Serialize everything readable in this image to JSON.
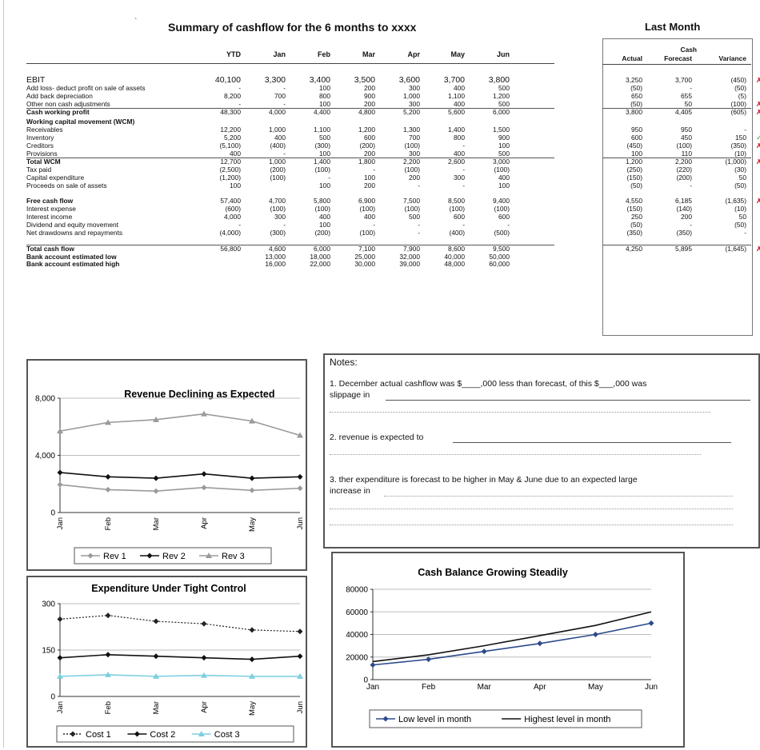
{
  "title": "Summary of cashflow for the 6 months to xxxx",
  "main_table": {
    "headers": [
      "YTD",
      "Jan",
      "Feb",
      "Mar",
      "Apr",
      "May",
      "Jun"
    ],
    "rows": [
      {
        "label": "EBIT",
        "style": "bold-big",
        "values": [
          "40,100",
          "3,300",
          "3,400",
          "3,500",
          "3,600",
          "3,700",
          "3,800"
        ]
      },
      {
        "label": "Add loss-  deduct profit on sale of assets",
        "values": [
          "-",
          "-",
          "100",
          "200",
          "300",
          "400",
          "500"
        ]
      },
      {
        "label": "Add back depreciation",
        "values": [
          "8,200",
          "700",
          "800",
          "900",
          "1,000",
          "1,100",
          "1,200"
        ]
      },
      {
        "label": "Other non cash adjustments",
        "values": [
          "-",
          "-",
          "100",
          "200",
          "300",
          "400",
          "500"
        ]
      },
      {
        "label": "Cash working profit",
        "style": "bold",
        "values": [
          "48,300",
          "4,000",
          "4,400",
          "4,800",
          "5,200",
          "5,600",
          "6,000"
        ]
      },
      {
        "label": "Working capital movement (WCM)",
        "style": "bold",
        "values": [
          "",
          "",
          "",
          "",
          "",
          "",
          ""
        ]
      },
      {
        "label": "Receivables",
        "values": [
          "12,200",
          "1,000",
          "1,100",
          "1,200",
          "1,300",
          "1,400",
          "1,500"
        ]
      },
      {
        "label": "Inventory",
        "values": [
          "5,200",
          "400",
          "500",
          "600",
          "700",
          "800",
          "900"
        ]
      },
      {
        "label": "Creditors",
        "values": [
          "(5,100)",
          "(400)",
          "(300)",
          "(200)",
          "(100)",
          "-",
          "100"
        ]
      },
      {
        "label": "Provisions",
        "values": [
          "400",
          "-",
          "100",
          "200",
          "300",
          "400",
          "500"
        ]
      },
      {
        "label": "Total WCM",
        "style": "bold",
        "values": [
          "12,700",
          "1,000",
          "1,400",
          "1,800",
          "2,200",
          "2,600",
          "3,000"
        ]
      },
      {
        "label": "Tax paid",
        "values": [
          "(2,500)",
          "(200)",
          "(100)",
          "-",
          "(100)",
          "-",
          "(100)"
        ]
      },
      {
        "label": "Capital expenditure",
        "values": [
          "(1,200)",
          "(100)",
          "-",
          "100",
          "200",
          "300",
          "400"
        ]
      },
      {
        "label": "Proceeds on sale of assets",
        "values": [
          "100",
          "",
          "100",
          "200",
          "-",
          "-",
          "100"
        ]
      },
      {
        "label": "",
        "values": [
          "",
          "",
          "",
          "",
          "",
          "",
          ""
        ]
      },
      {
        "label": "Free cash flow",
        "style": "bold",
        "values": [
          "57,400",
          "4,700",
          "5,800",
          "6,900",
          "7,500",
          "8,500",
          "9,400"
        ]
      },
      {
        "label": "Interest expense",
        "values": [
          "(600)",
          "(100)",
          "(100)",
          "(100)",
          "(100)",
          "(100)",
          "(100)"
        ]
      },
      {
        "label": "Interest income",
        "values": [
          "4,000",
          "300",
          "400",
          "400",
          "500",
          "600",
          "600"
        ]
      },
      {
        "label": "Dividend and equity movement",
        "values": [
          "-",
          "-",
          "100",
          "-",
          "-",
          "-",
          "-"
        ]
      },
      {
        "label": "Net drawdowns and repayments",
        "values": [
          "(4,000)",
          "(300)",
          "(200)",
          "(100)",
          "-",
          "(400)",
          "(500)"
        ]
      },
      {
        "label": "",
        "values": [
          "",
          "",
          "",
          "",
          "",
          "",
          ""
        ]
      },
      {
        "label": "Total cash flow",
        "style": "bold",
        "values": [
          "56,800",
          "4,600",
          "6,000",
          "7,100",
          "7,900",
          "8,600",
          "9,500"
        ]
      },
      {
        "label": "Bank account estimated low",
        "style": "bold",
        "values": [
          "",
          "13,000",
          "18,000",
          "25,000",
          "32,000",
          "40,000",
          "50,000"
        ]
      },
      {
        "label": "Bank account estimated high",
        "style": "bold",
        "values": [
          "",
          "16,000",
          "22,000",
          "30,000",
          "39,000",
          "48,000",
          "60,000"
        ]
      }
    ]
  },
  "last_month": {
    "title": "Last Month",
    "header_top": "Cash",
    "headers": [
      "Actual",
      "Forecast",
      "Variance"
    ],
    "rows": [
      {
        "values": [
          "3,250",
          "3,700",
          "(450)"
        ],
        "mark": "x"
      },
      {
        "values": [
          "(50)",
          "-",
          "(50)"
        ],
        "mark": ""
      },
      {
        "values": [
          "650",
          "655",
          "(5)"
        ],
        "mark": ""
      },
      {
        "values": [
          "(50)",
          "50",
          "(100)"
        ],
        "mark": "x"
      },
      {
        "values": [
          "3,800",
          "4,405",
          "(605)"
        ],
        "mark": "x"
      },
      {
        "values": [
          "",
          "",
          ""
        ],
        "mark": ""
      },
      {
        "values": [
          "950",
          "950",
          "-"
        ],
        "mark": ""
      },
      {
        "values": [
          "600",
          "450",
          "150"
        ],
        "mark": "ok"
      },
      {
        "values": [
          "(450)",
          "(100)",
          "(350)"
        ],
        "mark": "x"
      },
      {
        "values": [
          "100",
          "110",
          "(10)"
        ],
        "mark": ""
      },
      {
        "values": [
          "1,200",
          "2,200",
          "(1,000)"
        ],
        "mark": "x"
      },
      {
        "values": [
          "(250)",
          "(220)",
          "(30)"
        ],
        "mark": ""
      },
      {
        "values": [
          "(150)",
          "(200)",
          "50"
        ],
        "mark": ""
      },
      {
        "values": [
          "(50)",
          "-",
          "(50)"
        ],
        "mark": ""
      },
      {
        "values": [
          "",
          "",
          ""
        ],
        "mark": ""
      },
      {
        "values": [
          "4,550",
          "6,185",
          "(1,635)"
        ],
        "mark": "x"
      },
      {
        "values": [
          "(150)",
          "(140)",
          "(10)"
        ],
        "mark": ""
      },
      {
        "values": [
          "250",
          "200",
          "50"
        ],
        "mark": ""
      },
      {
        "values": [
          "(50)",
          "-",
          "(50)"
        ],
        "mark": ""
      },
      {
        "values": [
          "(350)",
          "(350)",
          "-"
        ],
        "mark": ""
      },
      {
        "values": [
          "",
          "",
          ""
        ],
        "mark": ""
      },
      {
        "values": [
          "4,250",
          "5,895",
          "(1,645)"
        ],
        "mark": "x"
      }
    ],
    "marks": {
      "x": "✗",
      "ok": "✓"
    }
  },
  "notes": {
    "title": "Notes:",
    "line1a": "1. December actual cashflow was $____,000 less than forecast, of this $___,000 was",
    "line1b": "slippage in ",
    "line2": "2. revenue is expected to ",
    "line3a": "3. ther expenditure is forecast to be higher in May & June due to an expected large",
    "line3b": "increase in "
  },
  "chart_data": [
    {
      "type": "line",
      "title": "_______Revenue Declining as Expected",
      "categories": [
        "Jan",
        "Feb",
        "Mar",
        "Apr",
        "May",
        "Jun"
      ],
      "ylim": [
        0,
        8000
      ],
      "yticks": [
        "0",
        "4,000",
        "8,000"
      ],
      "series": [
        {
          "name": "Rev 1",
          "values": [
            1950,
            1600,
            1500,
            1750,
            1550,
            1700
          ],
          "color": "#9a9a9a",
          "marker": "diamond"
        },
        {
          "name": "Rev 2",
          "values": [
            2800,
            2500,
            2400,
            2700,
            2400,
            2500
          ],
          "color": "#111111",
          "marker": "diamond"
        },
        {
          "name": "Rev 3",
          "values": [
            5700,
            6300,
            6500,
            6900,
            6400,
            5400
          ],
          "color": "#9a9a9a",
          "marker": "triangle"
        }
      ],
      "legend": "bottom"
    },
    {
      "type": "line",
      "title": "Expenditure Under Tight Control",
      "categories": [
        "Jan",
        "Feb",
        "Mar",
        "Apr",
        "May",
        "Jun"
      ],
      "ylim": [
        0,
        300
      ],
      "yticks": [
        "0",
        "150",
        "300"
      ],
      "series": [
        {
          "name": "Cost 1",
          "values": [
            250,
            262,
            243,
            235,
            215,
            210
          ],
          "color": "#222222",
          "marker": "diamond",
          "dash": true
        },
        {
          "name": "Cost 2",
          "values": [
            125,
            135,
            130,
            125,
            120,
            130
          ],
          "color": "#111111",
          "marker": "diamond"
        },
        {
          "name": "Cost 3",
          "values": [
            65,
            70,
            65,
            68,
            65,
            65
          ],
          "color": "#7ccfe0",
          "marker": "triangle"
        }
      ],
      "legend": "bottom"
    },
    {
      "type": "line",
      "title": "Cash Balance Growing Steadily",
      "categories": [
        "Jan",
        "Feb",
        "Mar",
        "Apr",
        "May",
        "Jun"
      ],
      "ylim": [
        0,
        80000
      ],
      "yticks": [
        "0",
        "20000",
        "40000",
        "60000",
        "80000"
      ],
      "series": [
        {
          "name": "Low level in month",
          "values": [
            13000,
            18000,
            25000,
            32000,
            40000,
            50000
          ],
          "color": "#2b4a8c",
          "marker": "diamond"
        },
        {
          "name": "Highest level in month",
          "values": [
            16000,
            22000,
            30000,
            39000,
            48000,
            60000
          ],
          "color": "#111111",
          "marker": "none"
        }
      ],
      "legend": "bottom"
    }
  ]
}
